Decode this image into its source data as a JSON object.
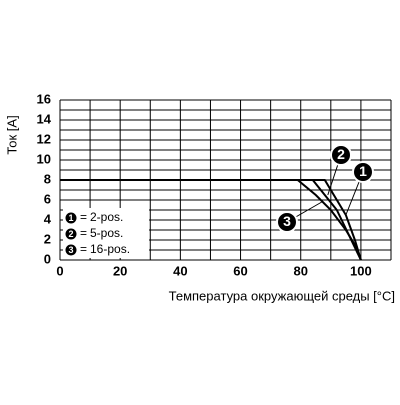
{
  "chart_data": {
    "type": "line",
    "y_label": "Ток [A]",
    "x_label": "Температура окружающей среды [°C]",
    "xlim": [
      0,
      110
    ],
    "ylim": [
      0,
      16
    ],
    "xticks": [
      0,
      20,
      40,
      60,
      80,
      100
    ],
    "yticks": [
      0,
      2,
      4,
      6,
      8,
      10,
      12,
      14,
      16
    ],
    "x_grid": [
      0,
      10,
      20,
      30,
      40,
      50,
      60,
      70,
      80,
      90,
      100,
      110
    ],
    "y_grid": [
      0,
      1,
      2,
      3,
      4,
      5,
      6,
      7,
      8,
      9,
      10,
      11,
      12,
      13,
      14,
      15,
      16
    ],
    "legend_separator": "=",
    "series": [
      {
        "label": "1",
        "name": "2-pos.",
        "color": "#000000",
        "x": [
          0,
          88,
          91,
          95,
          98,
          100
        ],
        "values": [
          8,
          8,
          6.5,
          4.5,
          2,
          0
        ]
      },
      {
        "label": "2",
        "name": "5-pos.",
        "color": "#000000",
        "x": [
          0,
          84,
          88,
          92,
          96,
          100
        ],
        "values": [
          8,
          8,
          6.5,
          5,
          2.5,
          0
        ]
      },
      {
        "label": "3",
        "name": "16-pos.",
        "color": "#000000",
        "x": [
          0,
          79,
          85,
          90,
          95,
          98,
          100
        ],
        "values": [
          8,
          8,
          6.5,
          5,
          3,
          1.5,
          0
        ]
      }
    ]
  }
}
